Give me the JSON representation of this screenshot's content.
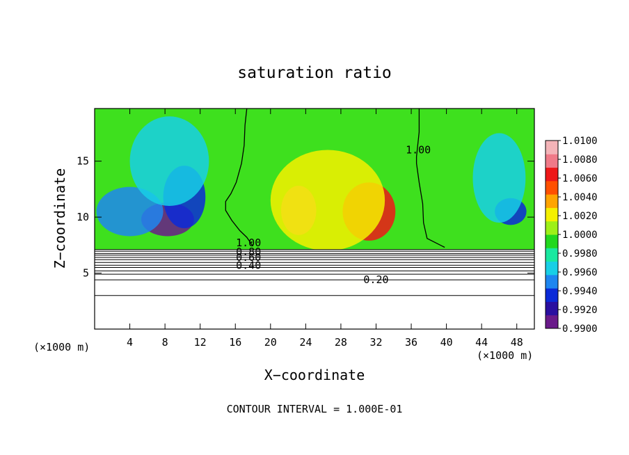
{
  "chart_data": {
    "type": "heatmap",
    "title": "saturation ratio",
    "xlabel": "X−coordinate",
    "ylabel": "Z−coordinate",
    "x_unit_left": "(×1000 m)",
    "x_unit_right": "(×1000 m)",
    "footer": "CONTOUR INTERVAL = 1.000E-01",
    "xlim": [
      0,
      50
    ],
    "ylim": [
      0,
      19.7
    ],
    "x_ticks": [
      4,
      8,
      12,
      16,
      20,
      24,
      28,
      32,
      36,
      40,
      44,
      48
    ],
    "y_ticks": [
      5,
      10,
      15
    ],
    "grid": false,
    "legend": "right",
    "colorbar": {
      "min": 0.99,
      "max": 1.01,
      "ticks": [
        "1.0100",
        "1.0080",
        "1.0060",
        "1.0040",
        "1.0020",
        "1.0000",
        "0.9980",
        "0.9960",
        "0.9940",
        "0.9920",
        "0.9900"
      ],
      "colors": [
        "#6a1a8a",
        "#2a0fa0",
        "#0a2ad8",
        "#1e86f0",
        "#18cfe6",
        "#19e8a0",
        "#22d81e",
        "#9ef018",
        "#f4f000",
        "#ffa400",
        "#ff5000",
        "#ee1818",
        "#f07a88",
        "#f4b4b8"
      ]
    },
    "contour_labels": [
      {
        "x": 17.5,
        "z": 7.7,
        "text": "1.00"
      },
      {
        "x": 36.8,
        "z": 16.0,
        "text": "1.00"
      },
      {
        "x": 17.5,
        "z": 6.9,
        "text": "0.80"
      },
      {
        "x": 17.5,
        "z": 6.4,
        "text": "0.60"
      },
      {
        "x": 17.5,
        "z": 5.7,
        "text": "0.40"
      },
      {
        "x": 32.0,
        "z": 4.4,
        "text": "0.20"
      }
    ],
    "contour_line_1": [
      [
        18,
        7.4
      ],
      [
        17.3,
        8.2
      ],
      [
        16.5,
        8.8
      ],
      [
        15.6,
        9.7
      ],
      [
        14.9,
        10.6
      ],
      [
        14.9,
        11.4
      ],
      [
        15.5,
        12.1
      ],
      [
        16.1,
        13.1
      ],
      [
        16.7,
        14.8
      ],
      [
        17.0,
        16.4
      ],
      [
        17.1,
        18.2
      ],
      [
        17.3,
        19.7
      ]
    ],
    "contour_line_2": [
      [
        39.8,
        7.3
      ],
      [
        37.8,
        8.1
      ],
      [
        37.4,
        9.5
      ],
      [
        37.3,
        11.2
      ],
      [
        36.9,
        13.1
      ],
      [
        36.6,
        14.8
      ],
      [
        36.6,
        15.4
      ],
      [
        36.9,
        17.6
      ],
      [
        36.9,
        19.7
      ]
    ],
    "unsaturated_layers_z": [
      7.1,
      6.95,
      6.75,
      6.6,
      6.4,
      6.2,
      5.95,
      5.7,
      5.5,
      5.2,
      4.9,
      4.4,
      3.0
    ],
    "field_regions": [
      {
        "level": 0.991,
        "x": 8.3,
        "z": 9.8,
        "sx": 3.0,
        "sz": 1.5
      },
      {
        "level": 0.9935,
        "x": 10.2,
        "z": 11.8,
        "sx": 2.4,
        "sz": 2.8
      },
      {
        "level": 0.995,
        "x": 4.0,
        "z": 10.5,
        "sx": 3.8,
        "sz": 2.2
      },
      {
        "level": 0.997,
        "x": 8.5,
        "z": 15.0,
        "sx": 4.5,
        "sz": 4.0
      },
      {
        "level": 0.9935,
        "x": 47.3,
        "z": 10.5,
        "sx": 1.8,
        "sz": 1.2
      },
      {
        "level": 0.9965,
        "x": 46.0,
        "z": 13.5,
        "sx": 3.0,
        "sz": 4.0
      },
      {
        "level": 1.0076,
        "x": 23.2,
        "z": 10.6,
        "sx": 2.0,
        "sz": 2.2
      },
      {
        "level": 1.0062,
        "x": 31.2,
        "z": 10.5,
        "sx": 3.0,
        "sz": 2.6
      },
      {
        "level": 1.0025,
        "x": 26.5,
        "z": 11.5,
        "sx": 6.5,
        "sz": 4.5
      }
    ]
  }
}
